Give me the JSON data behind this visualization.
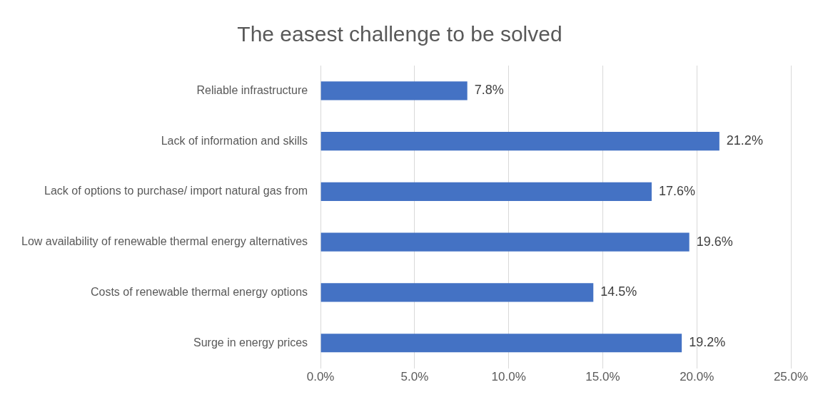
{
  "chart_data": {
    "type": "bar",
    "orientation": "horizontal",
    "title": "The easest challenge to be solved",
    "categories": [
      "Reliable infrastructure",
      "Lack of information and skills",
      "Lack of options to purchase/ import natural gas from",
      "Low availability of renewable thermal energy alternatives",
      "Costs of renewable thermal energy options",
      "Surge in energy prices"
    ],
    "values": [
      7.8,
      21.2,
      17.6,
      19.6,
      14.5,
      19.2
    ],
    "value_labels": [
      "7.8%",
      "21.2%",
      "17.6%",
      "19.6%",
      "14.5%",
      "19.2%"
    ],
    "color": "#4472c4",
    "xlim": [
      0,
      25
    ],
    "xticks": [
      {
        "value": 0,
        "label": "0.0%"
      },
      {
        "value": 5,
        "label": "5.0%"
      },
      {
        "value": 10,
        "label": "10.0%"
      },
      {
        "value": 15,
        "label": "15.0%"
      },
      {
        "value": 20,
        "label": "20.0%"
      },
      {
        "value": 25,
        "label": "25.0%"
      }
    ],
    "grid": "x",
    "legend": false
  }
}
